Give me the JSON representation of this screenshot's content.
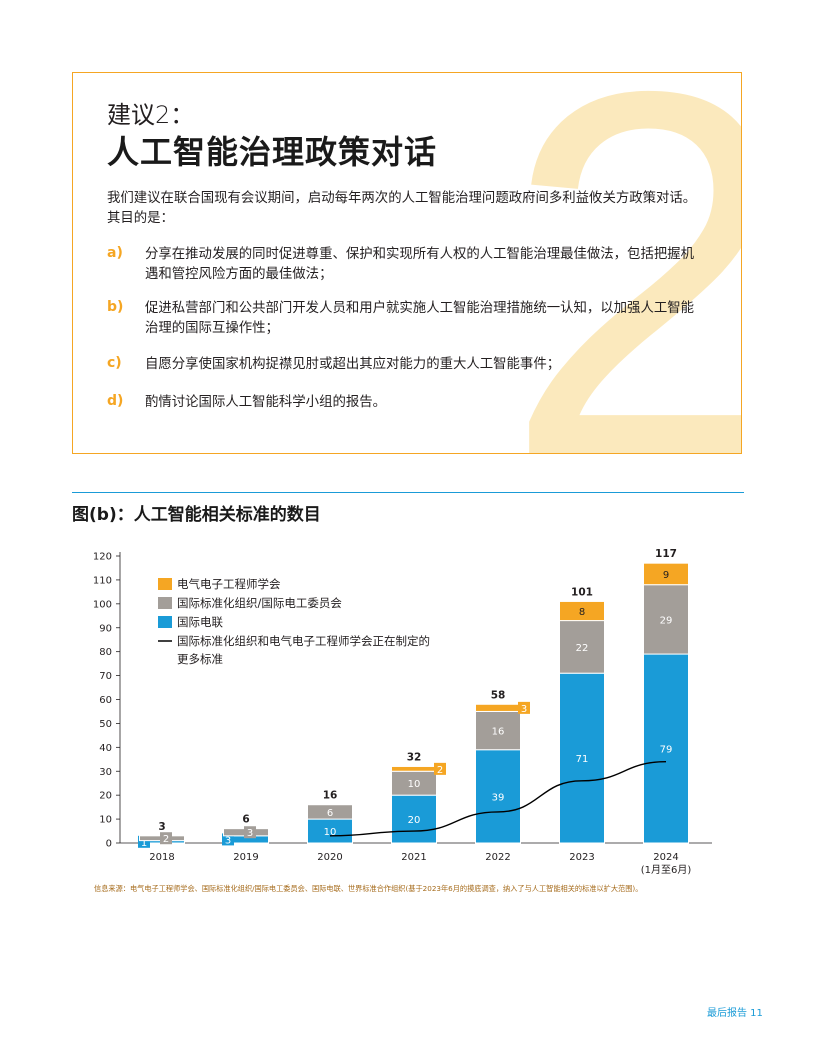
{
  "recommendation": {
    "numeral": "2",
    "label": "建议2：",
    "title": "人工智能治理政策对话",
    "intro": "我们建议在联合国现有会议期间，启动每年两次的人工智能治理问题政府间多利益攸关方政策对话。其目的是：",
    "items": [
      {
        "marker": "a)",
        "text": "分享在推动发展的同时促进尊重、保护和实现所有人权的人工智能治理最佳做法，包括把握机遇和管控风险方面的最佳做法；"
      },
      {
        "marker": "b)",
        "text": "促进私营部门和公共部门开发人员和用户就实施人工智能治理措施统一认知，以加强人工智能治理的国际互操作性；"
      },
      {
        "marker": "c)",
        "text": "自愿分享使国家机构捉襟见肘或超出其应对能力的重大人工智能事件；"
      },
      {
        "marker": "d)",
        "text": "酌情讨论国际人工智能科学小组的报告。"
      }
    ]
  },
  "figure": {
    "title": "图(b)：人工智能相关标准的数目",
    "source": "信息来源：电气电子工程师学会、国际标准化组织/国际电工委员会、国际电联、世界标准合作组织(基于2023年6月的摸底调查，纳入了与人工智能相关的标准以扩大范围)。"
  },
  "chart_data": {
    "type": "bar",
    "stacked": true,
    "title": "图(b)：人工智能相关标准的数目",
    "categories": [
      "2018",
      "2019",
      "2020",
      "2021",
      "2022",
      "2023",
      "2024"
    ],
    "category_sublabels": [
      "",
      "",
      "",
      "",
      "",
      "",
      "(1月至6月)"
    ],
    "ylim": [
      0,
      120
    ],
    "yticks": [
      0,
      10,
      20,
      30,
      40,
      50,
      60,
      70,
      80,
      90,
      100,
      110,
      120
    ],
    "grid": false,
    "legend_position": "top-left",
    "series": [
      {
        "name": "国际电联",
        "color": "#1a9bd7",
        "values": [
          1,
          3,
          10,
          20,
          39,
          71,
          79
        ]
      },
      {
        "name": "国际标准化组织/国际电工委员会",
        "color": "#a39e99",
        "values": [
          2,
          3,
          6,
          10,
          16,
          22,
          29
        ]
      },
      {
        "name": "电气电子工程师学会",
        "color": "#f5a623",
        "values": [
          0,
          0,
          0,
          2,
          3,
          8,
          9
        ]
      }
    ],
    "totals": [
      3,
      6,
      16,
      32,
      58,
      101,
      117
    ],
    "line_series": {
      "name": "国际标准化组织和电气电子工程师学会正在制定的更多标准",
      "color": "#000000",
      "x": [
        "2020",
        "2021",
        "2022",
        "2023",
        "2024"
      ],
      "values": [
        3,
        5,
        13,
        26,
        34
      ]
    },
    "legend_order": [
      "电气电子工程师学会",
      "国际标准化组织/国际电工委员会",
      "国际电联",
      "国际标准化组织和电气电子工程师学会正在制定的更多标准"
    ]
  },
  "footer": {
    "text": "最后报告 11"
  },
  "colors": {
    "accent_orange": "#f5a623",
    "accent_blue": "#1a9bd7",
    "gray": "#a39e99",
    "numeral_tint": "#fbe9bd"
  }
}
